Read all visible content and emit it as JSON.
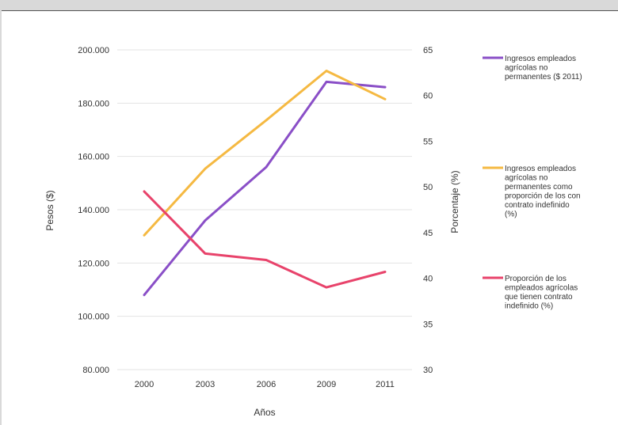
{
  "chart_data": {
    "type": "line",
    "x": [
      "2000",
      "2003",
      "2006",
      "2009",
      "2011"
    ],
    "xlabel": "Años",
    "ylabel_left": "Pesos ($)",
    "ylabel_right": "Porcentaje (%)",
    "ylim_left": [
      80000,
      200000
    ],
    "ylim_right": [
      30,
      65
    ],
    "yticks_left": [
      "200.000",
      "180.000",
      "160.000",
      "140.000",
      "120.000",
      "100.000",
      "80.000"
    ],
    "yticks_right": [
      "65",
      "60",
      "55",
      "50",
      "45",
      "40",
      "35",
      "30"
    ],
    "grid": true,
    "legend_position": "right",
    "series": [
      {
        "name": "Ingresos empleados agrícolas no permanentes ($ 2011)",
        "legend_lines": [
          "Ingresos empleados",
          "agrícolas no",
          "permanentes ($ 2011)"
        ],
        "axis": "left",
        "color": "#8a4fc7",
        "values": [
          108000,
          136000,
          156000,
          188000,
          186000
        ]
      },
      {
        "name": "Ingresos empleados agrícolas no permanentes como proporción de los con contrato indefinido (%)",
        "legend_lines": [
          "Ingresos empleados",
          "agrícolas no",
          "permanentes  como",
          "proporción de los con",
          "contrato indefinido",
          "(%)"
        ],
        "axis": "right",
        "color": "#f5b942",
        "values": [
          44.7,
          52.0,
          57.3,
          62.7,
          59.6
        ]
      },
      {
        "name": "Proporción de los empleados agrícolas que tienen contrato indefinido (%)",
        "legend_lines": [
          "Proporción de los",
          "empleados agrícolas",
          "que tienen contrato",
          "indefinido (%)"
        ],
        "axis": "right",
        "color": "#e8436b",
        "values": [
          49.5,
          42.7,
          42.0,
          39.0,
          40.7
        ]
      }
    ]
  }
}
